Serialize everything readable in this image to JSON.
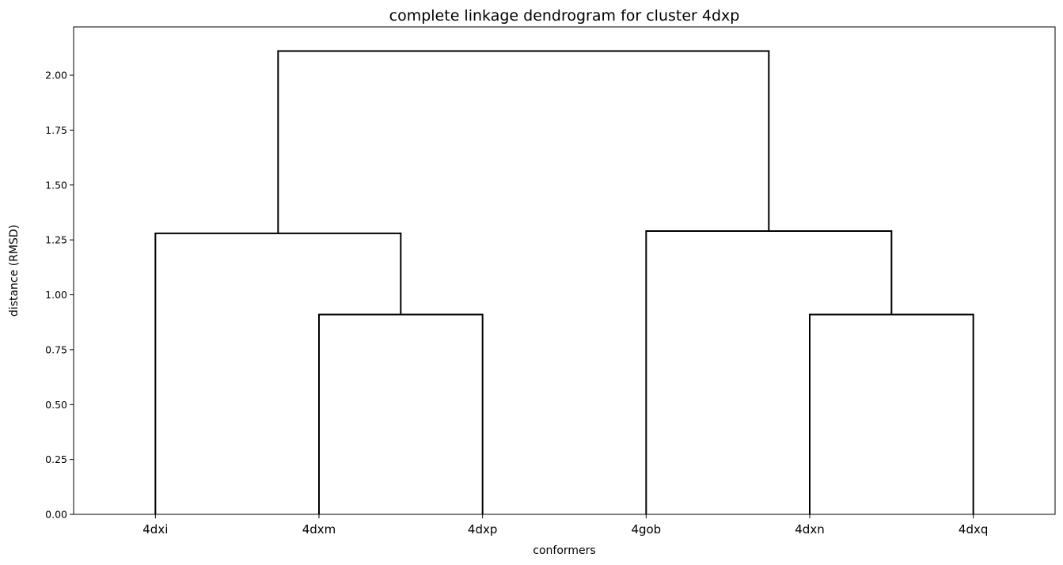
{
  "chart_data": {
    "type": "dendrogram",
    "title": "complete linkage dendrogram for cluster 4dxp",
    "xlabel": "conformers",
    "ylabel": "distance (RMSD)",
    "ylim": [
      0,
      2.22
    ],
    "yticks": [
      "0.00",
      "0.25",
      "0.50",
      "0.75",
      "1.00",
      "1.25",
      "1.50",
      "1.75",
      "2.00"
    ],
    "leaves": [
      "4dxi",
      "4dxm",
      "4dxp",
      "4gob",
      "4dxn",
      "4dxq"
    ],
    "merges": [
      {
        "left": "4dxm",
        "right": "4dxp",
        "distance": 0.91
      },
      {
        "left": "4dxn",
        "right": "4dxq",
        "distance": 0.91
      },
      {
        "left": "4dxi",
        "right": "(4dxm,4dxp)",
        "distance": 1.28
      },
      {
        "left": "4gob",
        "right": "(4dxn,4dxq)",
        "distance": 1.29
      },
      {
        "left": "(4dxi,(4dxm,4dxp))",
        "right": "(4gob,(4dxn,4dxq))",
        "distance": 2.11
      }
    ],
    "line_color": "#000000",
    "grid": false
  }
}
